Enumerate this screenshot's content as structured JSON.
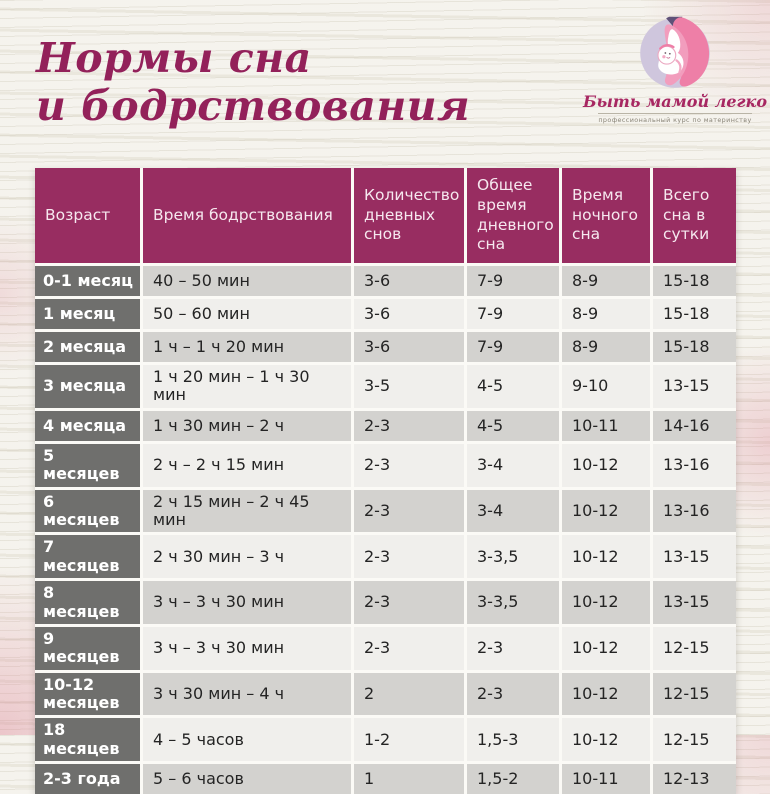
{
  "title": {
    "line1": "Нормы сна",
    "line2": "и бодрствования"
  },
  "logo": {
    "brand": "Быть мамой легко",
    "tagline": "профессиональный курс по материнству"
  },
  "chart_data": {
    "type": "table",
    "title": "Нормы сна и бодрствования",
    "columns": [
      "Возраст",
      "Время бодрствования",
      "Количество дневных снов",
      "Общее время дневного сна",
      "Время ночного сна",
      "Всего сна в сутки"
    ],
    "rows": [
      [
        "0-1 месяц",
        "40 – 50 мин",
        "3-6",
        "7-9",
        "8-9",
        "15-18"
      ],
      [
        "1 месяц",
        "50 – 60 мин",
        "3-6",
        "7-9",
        "8-9",
        "15-18"
      ],
      [
        "2 месяца",
        "1 ч – 1 ч 20 мин",
        "3-6",
        "7-9",
        "8-9",
        "15-18"
      ],
      [
        "3 месяца",
        "1 ч 20 мин – 1 ч 30 мин",
        "3-5",
        "4-5",
        "9-10",
        "13-15"
      ],
      [
        "4 месяца",
        "1 ч 30 мин – 2 ч",
        "2-3",
        "4-5",
        "10-11",
        "14-16"
      ],
      [
        "5 месяцев",
        "2 ч – 2 ч 15 мин",
        "2-3",
        "3-4",
        "10-12",
        "13-16"
      ],
      [
        "6 месяцев",
        "2 ч 15 мин – 2 ч 45 мин",
        "2-3",
        "3-4",
        "10-12",
        "13-16"
      ],
      [
        "7 месяцев",
        "2 ч 30 мин – 3 ч",
        "2-3",
        "3-3,5",
        "10-12",
        "13-15"
      ],
      [
        "8 месяцев",
        "3 ч – 3 ч 30 мин",
        "2-3",
        "3-3,5",
        "10-12",
        "13-15"
      ],
      [
        "9 месяцев",
        "3 ч – 3 ч 30 мин",
        "2-3",
        "2-3",
        "10-12",
        "12-15"
      ],
      [
        "10-12 месяцев",
        "3 ч 30 мин – 4 ч",
        "2",
        "2-3",
        "10-12",
        "12-15"
      ],
      [
        "18 месяцев",
        "4 – 5 часов",
        "1-2",
        "1,5-3",
        "10-12",
        "12-15"
      ],
      [
        "2-3 года",
        "5 – 6 часов",
        "1",
        "1,5-2",
        "10-11",
        "12-13"
      ]
    ]
  },
  "colors": {
    "accent_magenta": "#982d61",
    "title_color": "#93215a",
    "header_bg": "#982d61",
    "header_text": "#f6e8ef",
    "age_cell_bg": "#6f6f6d",
    "age_cell_text": "#ffffff",
    "row_dark": "#d3d2cf",
    "row_light": "#f0efec",
    "cell_text": "#242424",
    "background": "#f1efe8"
  }
}
